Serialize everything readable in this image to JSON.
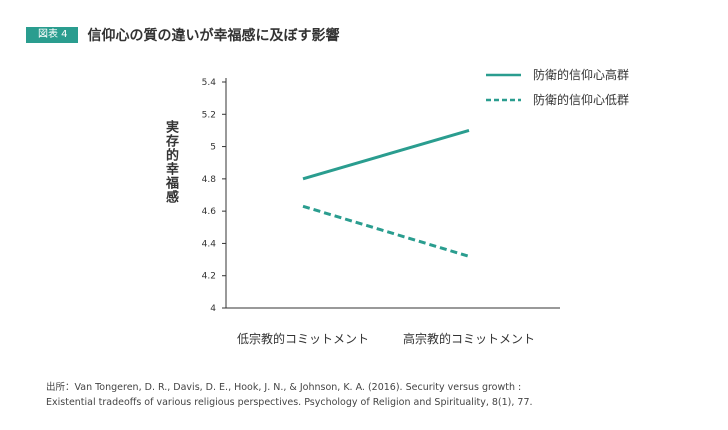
{
  "figure": {
    "badge": "図表 4",
    "title": "信仰心の質の違いが幸福感に及ぼす影響"
  },
  "chart_data": {
    "type": "line",
    "categories": [
      "低宗教的コミットメント",
      "高宗教的コミットメント"
    ],
    "series": [
      {
        "name": "防衛的信仰心高群",
        "values": [
          4.8,
          5.1
        ],
        "style": "solid",
        "color": "#2a9d8f"
      },
      {
        "name": "防衛的信仰心低群",
        "values": [
          4.63,
          4.32
        ],
        "style": "dashed",
        "color": "#2a9d8f"
      }
    ],
    "ylabel": "実存的幸福感",
    "xlabel": "",
    "ylim": [
      4,
      5.4
    ],
    "yticks": [
      "4",
      "4.2",
      "4.4",
      "4.6",
      "4.8",
      "5",
      "5.2",
      "5.4"
    ],
    "grid": false,
    "legend_position": "top-right"
  },
  "source": {
    "line1": "出所：Van Tongeren, D. R., Davis, D. E., Hook, J. N., & Johnson, K. A. (2016). Security versus growth :",
    "line2": "Existential tradeoffs of various religious perspectives. Psychology of Religion and Spirituality, 8(1), 77."
  }
}
